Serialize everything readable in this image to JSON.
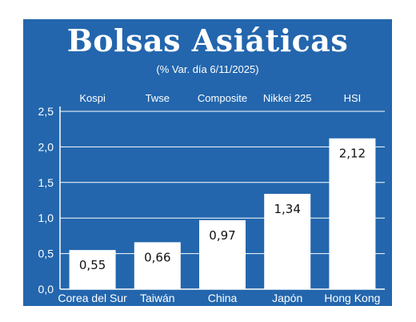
{
  "title": "Bolsas Asiáticas",
  "subtitle": "(% Var. día  6/11/2025)",
  "colors": {
    "background": "#2366ad",
    "bar": "#ffffff",
    "text": "#ffffff"
  },
  "chart_data": {
    "type": "bar",
    "index_names": [
      "Kospi",
      "Twse",
      "Composite",
      "Nikkei 225",
      "HSI"
    ],
    "categories": [
      "Corea del Sur",
      "Taiwán",
      "China",
      "Japón",
      "Hong Kong"
    ],
    "values": [
      0.55,
      0.66,
      0.97,
      1.34,
      2.12
    ],
    "value_labels": [
      "0,55",
      "0,66",
      "0,97",
      "1,34",
      "2,12"
    ],
    "yticks": [
      "0,0",
      "0,5",
      "1,0",
      "1,5",
      "2,0",
      "2,5"
    ],
    "ylim": [
      0,
      2.5
    ],
    "grid": true
  }
}
